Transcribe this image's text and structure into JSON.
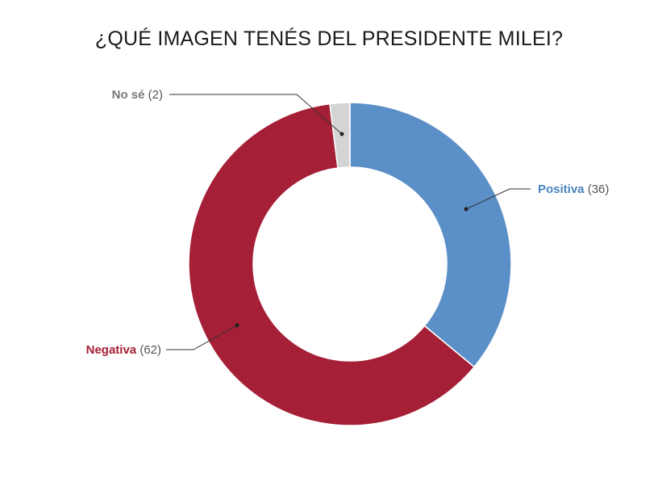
{
  "chart_data": {
    "type": "pie",
    "variant": "donut",
    "title": "¿QUÉ IMAGEN TENÉS DEL PRESIDENTE MILEI?",
    "slices": [
      {
        "label": "Positiva",
        "value": 36,
        "value_text": "(36)",
        "color": "#5b8fc7",
        "label_color": "#4a84c0"
      },
      {
        "label": "Negativa",
        "value": 62,
        "value_text": "(62)",
        "color": "#a51f36",
        "label_color": "#a51f36"
      },
      {
        "label": "No sé",
        "value": 2,
        "value_text": "(2)",
        "color": "#d4d4d4",
        "label_color": "#7a7a7a"
      }
    ],
    "legend": "none"
  }
}
